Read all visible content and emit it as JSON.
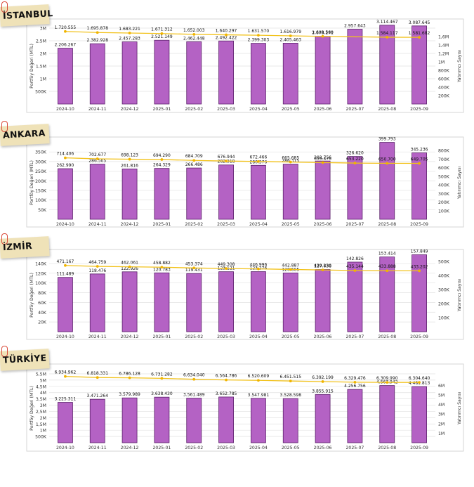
{
  "colors": {
    "bar_fill": "#b462c4",
    "bar_stroke": "#5a1f6a",
    "line": "#f2c21b",
    "marker": "#f0b400",
    "grid": "#e2e2e2",
    "panel_border": "#d6d6d6",
    "tag_bg": "#efe2b8",
    "clip": "#d94b3a"
  },
  "chart_data": [
    {
      "type": "bar",
      "title": "İSTANBUL",
      "ylabel": "Portföy Değeri (MTL)",
      "y2label": "Yatırımcı Sayısı",
      "categories": [
        "2024-10",
        "2024-11",
        "2024-12",
        "2025-01",
        "2025-02",
        "2025-03",
        "2025-04",
        "2025-05",
        "2025-06",
        "2025-07",
        "2025-08",
        "2025-09"
      ],
      "ylim": [
        0,
        3000
      ],
      "yticks": [
        500,
        1000,
        1500,
        2000,
        2500,
        3000
      ],
      "ytick_labels": [
        "500K",
        "1M",
        "1,5M",
        "2M",
        "2,5M",
        "3M"
      ],
      "y2lim": [
        0,
        1800000
      ],
      "y2ticks": [
        200000,
        400000,
        600000,
        800000,
        1000000,
        1200000,
        1400000,
        1600000
      ],
      "y2tick_labels": [
        "200K",
        "400K",
        "600K",
        "800K",
        "1M",
        "1,2M",
        "1,4M",
        "1,6M"
      ],
      "series": [
        {
          "name": "Portföy Değeri",
          "type": "bar",
          "values": [
            2206.267,
            2382.928,
            2457.283,
            2521.149,
            2462.448,
            2492.422,
            2399.303,
            2405.463,
            2678.271,
            2957.643,
            3114.467,
            3087.645
          ],
          "labels": [
            "2.206.267",
            "2.382.928",
            "2.457.283",
            "2.521.149",
            "2.462.448",
            "2.492.422",
            "2.399.303",
            "2.405.463",
            "2.678.271",
            "2.957.643",
            "3.114.467",
            "3.087.645"
          ]
        },
        {
          "name": "Yatırımcı Sayısı",
          "type": "line",
          "values": [
            1720555,
            1695878,
            1683221,
            1671312,
            1652003,
            1640297,
            1631570,
            1616979,
            1603560,
            null,
            1584117,
            1581682
          ],
          "labels": [
            "1.720.555",
            "1.695.878",
            "1.683.221",
            "1.671.312",
            "1.652.003",
            "1.640.297",
            "1.631.570",
            "1.616.979",
            "1.603.560",
            "",
            "1.584.117",
            "1.581.682"
          ]
        }
      ]
    },
    {
      "type": "bar",
      "title": "ANKARA",
      "ylabel": "Portföy Değeri (MTL)",
      "y2label": "Yatırımcı Sayısı",
      "categories": [
        "2024-10",
        "2024-11",
        "2024-12",
        "2025-01",
        "2025-02",
        "2025-03",
        "2025-04",
        "2025-05",
        "2025-06",
        "2025-07",
        "2025-08",
        "2025-09"
      ],
      "ylim": [
        0,
        380
      ],
      "yticks": [
        50,
        100,
        150,
        200,
        250,
        300,
        350
      ],
      "ytick_labels": [
        "50K",
        "100K",
        "150K",
        "200K",
        "250K",
        "300K",
        "350K"
      ],
      "y2lim": [
        0,
        850000
      ],
      "y2ticks": [
        100000,
        200000,
        300000,
        400000,
        500000,
        600000,
        700000,
        800000
      ],
      "y2tick_labels": [
        "100K",
        "200K",
        "300K",
        "400K",
        "500K",
        "600K",
        "700K",
        "800K"
      ],
      "series": [
        {
          "name": "Portföy Değeri",
          "type": "bar",
          "values": [
            262.99,
            286.505,
            261.816,
            264.329,
            266.486,
            282.318,
            280.376,
            286.375,
            302.756,
            326.62,
            399.793,
            345.236
          ],
          "labels": [
            "262.990",
            "286.505",
            "261.816",
            "264.329",
            "266.486",
            "282.318",
            "280.376",
            "286.375",
            "302.756",
            "326.620",
            "399.793",
            "345.236"
          ]
        },
        {
          "name": "Yatırımcı Sayısı",
          "type": "line",
          "values": [
            714406,
            702677,
            698123,
            694290,
            684709,
            676944,
            672466,
            665685,
            659476,
            653220,
            650700,
            649705
          ],
          "labels": [
            "714.406",
            "702.677",
            "698.123",
            "694.290",
            "684.709",
            "676.944",
            "672.466",
            "665.685",
            "659.476",
            "653.220",
            "650.700",
            "649.705"
          ]
        }
      ]
    },
    {
      "type": "bar",
      "title": "İZMİR",
      "ylabel": "Portföy Değeri (MTL)",
      "y2label": "Yatırımcı Sayısı",
      "categories": [
        "2024-10",
        "2024-11",
        "2024-12",
        "2025-01",
        "2025-02",
        "2025-03",
        "2025-04",
        "2025-05",
        "2025-06",
        "2025-07",
        "2025-08",
        "2025-09"
      ],
      "ylim": [
        0,
        150
      ],
      "yticks": [
        20,
        40,
        60,
        80,
        100,
        120,
        140
      ],
      "ytick_labels": [
        "20K",
        "40K",
        "60K",
        "80K",
        "100K",
        "120K",
        "140K"
      ],
      "y2lim": [
        0,
        520000
      ],
      "y2ticks": [
        100000,
        200000,
        300000,
        400000,
        500000
      ],
      "y2tick_labels": [
        "100K",
        "200K",
        "300K",
        "400K",
        "500K"
      ],
      "series": [
        {
          "name": "Portföy Değeri",
          "type": "bar",
          "values": [
            111.489,
            118.476,
            122.926,
            120.783,
            119.431,
            123.121,
            123.276,
            120.605,
            127.638,
            142.826,
            153.414,
            157.849
          ],
          "labels": [
            "111.489",
            "118.476",
            "122.926",
            "120.783",
            "119.431",
            "123.121",
            "123.276",
            "120.605",
            "127.638",
            "142.826",
            "153.414",
            "157.849"
          ]
        },
        {
          "name": "Yatırımcı Sayısı",
          "type": "line",
          "values": [
            471167,
            464759,
            462061,
            458882,
            453374,
            449308,
            446996,
            442887,
            439230,
            435144,
            433888,
            433202
          ],
          "labels": [
            "471.167",
            "464.759",
            "462.061",
            "458.882",
            "453.374",
            "449.308",
            "446.996",
            "442.887",
            "439.230",
            "435.144",
            "433.888",
            "433.202"
          ]
        }
      ]
    },
    {
      "type": "bar",
      "title": "TÜRKİYE",
      "ylabel": "Portföy Değeri (MTL)",
      "y2label": "Yatırımcı Sayısı",
      "categories": [
        "2024-10",
        "2024-11",
        "2024-12",
        "2025-01",
        "2025-02",
        "2025-03",
        "2025-04",
        "2025-05",
        "2025-06",
        "2025-07",
        "2025-08",
        "2025-09"
      ],
      "ylim": [
        0,
        5500
      ],
      "yticks": [
        500,
        1000,
        1500,
        2000,
        2500,
        3000,
        3500,
        4000,
        4500,
        5000,
        5500
      ],
      "ytick_labels": [
        "500K",
        "1M",
        "1,5M",
        "2M",
        "2,5M",
        "3M",
        "3,5M",
        "4M",
        "4,5M",
        "5M",
        "5,5M"
      ],
      "y2lim": [
        0,
        7200000
      ],
      "y2ticks": [
        1000000,
        2000000,
        3000000,
        4000000,
        5000000,
        6000000
      ],
      "y2tick_labels": [
        "1M",
        "2M",
        "3M",
        "4M",
        "5M",
        "6M"
      ],
      "series": [
        {
          "name": "Portföy Değeri",
          "type": "bar",
          "values": [
            3225.311,
            3471.264,
            3579.989,
            3638.43,
            3561.489,
            3652.785,
            3547.981,
            3528.598,
            3855.915,
            4256.756,
            4567.942,
            4481.813
          ],
          "labels": [
            "3.225.311",
            "3.471.264",
            "3.579.989",
            "3.638.430",
            "3.561.489",
            "3.652.785",
            "3.547.981",
            "3.528.598",
            "3.855.915",
            "4.256.756",
            "4.567.942",
            "4.481.813"
          ]
        },
        {
          "name": "Yatırımcı Sayısı",
          "type": "line",
          "values": [
            6934962,
            6818331,
            6786128,
            6731282,
            6634040,
            6564786,
            6520609,
            6451515,
            6392199,
            6329476,
            6309990,
            6304640
          ],
          "labels": [
            "6.934.962",
            "6.818.331",
            "6.786.128",
            "6.731.282",
            "6.634.040",
            "6.564.786",
            "6.520.609",
            "6.451.515",
            "6.392.199",
            "6.329.476",
            "6.309.990",
            "6.304.640"
          ]
        }
      ]
    }
  ]
}
